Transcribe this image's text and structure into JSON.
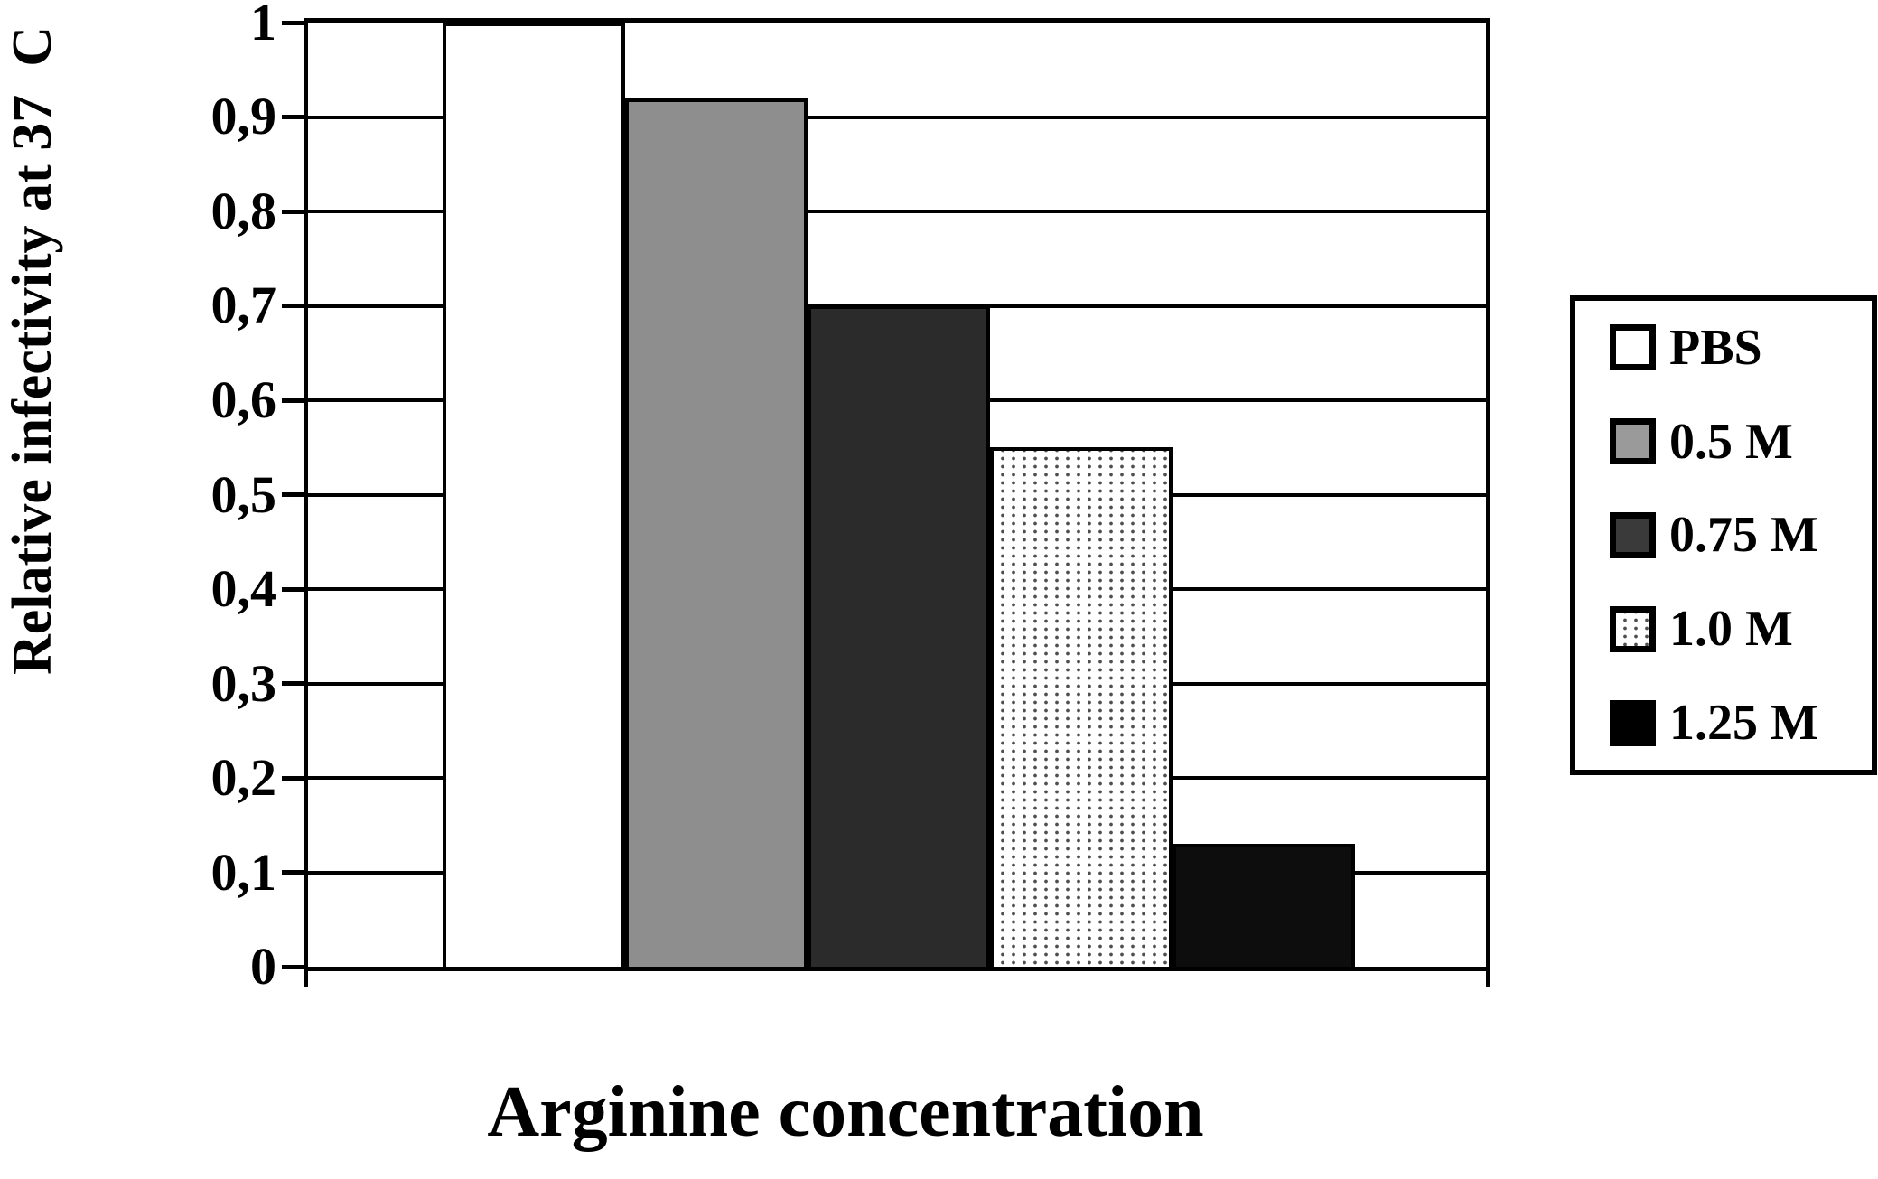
{
  "chart_data": {
    "type": "bar",
    "categories": [
      "PBS",
      "0.5 M",
      "0.75 M",
      "1.0 M",
      "1.25 M"
    ],
    "values": [
      1.0,
      0.92,
      0.7,
      0.55,
      0.13
    ],
    "title": "",
    "xlabel": "Arginine concentration",
    "ylabel": "Relative infectivity at 37  C",
    "ylim": [
      0,
      1
    ],
    "ytick_step": 0.1,
    "ytick_labels": [
      "0",
      "0,1",
      "0,2",
      "0,3",
      "0,4",
      "0,5",
      "0,6",
      "0,7",
      "0,8",
      "0,9",
      "1"
    ],
    "grid": true,
    "legend_position": "right-outside",
    "legend_labels": [
      "PBS",
      "0.5 M",
      "0.75 M",
      "1.0 M",
      "1.25 M"
    ],
    "bar_styles": [
      {
        "name": "PBS",
        "pattern": "solid",
        "color": "#ffffff"
      },
      {
        "name": "0.5 M",
        "pattern": "solid",
        "color": "#8e8e8e"
      },
      {
        "name": "0.75 M",
        "pattern": "solid",
        "color": "#2b2b2b"
      },
      {
        "name": "1.0 M",
        "pattern": "dotted",
        "color": "#ffffff",
        "dot_color": "#4f4f4f"
      },
      {
        "name": "1.25 M",
        "pattern": "solid",
        "color": "#0d0d0d"
      }
    ],
    "swatch_colors": [
      "#ffffff",
      "#9a9a9a",
      "#3a3a3a",
      "dotted",
      "#000000"
    ],
    "frame_color": "#000000",
    "gridline_color": "#000000"
  }
}
